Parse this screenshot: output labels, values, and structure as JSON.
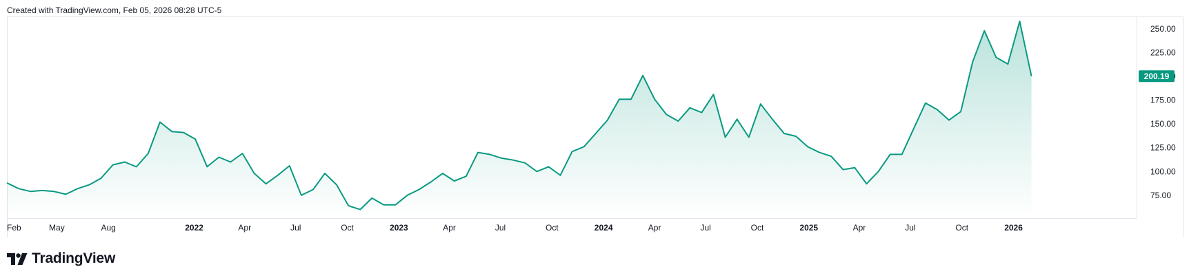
{
  "caption": "Created with TradingView.com, Feb 05, 2026 08:28 UTC-5",
  "brand": {
    "name": "TradingView",
    "logo_icon": "tradingview-logo-icon"
  },
  "colors": {
    "line": "#089981",
    "fill_top": "#089981",
    "label_bg": "#089981",
    "label_text": "#ffffff",
    "axis_text": "#131722",
    "border": "#e0e3eb"
  },
  "chart_data": {
    "type": "area",
    "title": "",
    "xlabel": "",
    "ylabel": "",
    "grid": false,
    "x_range": [
      "2021-02-01",
      "2026-02-05"
    ],
    "ylim": [
      51,
      263
    ],
    "y_ticks": [
      "75.00",
      "100.00",
      "125.00",
      "150.00",
      "175.00",
      "200.00",
      "225.00",
      "250.00"
    ],
    "x_ticks": [
      {
        "label": "Feb",
        "date": "2021-02-01",
        "bold": false
      },
      {
        "label": "May",
        "date": "2021-05-01",
        "bold": false
      },
      {
        "label": "Aug",
        "date": "2021-08-01",
        "bold": false
      },
      {
        "label": "2022",
        "date": "2022-01-01",
        "bold": true
      },
      {
        "label": "Apr",
        "date": "2022-04-01",
        "bold": false
      },
      {
        "label": "Jul",
        "date": "2022-07-01",
        "bold": false
      },
      {
        "label": "Oct",
        "date": "2022-10-01",
        "bold": false
      },
      {
        "label": "2023",
        "date": "2023-01-01",
        "bold": true
      },
      {
        "label": "Apr",
        "date": "2023-04-01",
        "bold": false
      },
      {
        "label": "Jul",
        "date": "2023-07-01",
        "bold": false
      },
      {
        "label": "Oct",
        "date": "2023-10-01",
        "bold": false
      },
      {
        "label": "2024",
        "date": "2024-01-01",
        "bold": true
      },
      {
        "label": "Apr",
        "date": "2024-04-01",
        "bold": false
      },
      {
        "label": "Jul",
        "date": "2024-07-01",
        "bold": false
      },
      {
        "label": "Oct",
        "date": "2024-10-01",
        "bold": false
      },
      {
        "label": "2025",
        "date": "2025-01-01",
        "bold": true
      },
      {
        "label": "Apr",
        "date": "2025-04-01",
        "bold": false
      },
      {
        "label": "Jul",
        "date": "2025-07-01",
        "bold": false
      },
      {
        "label": "Oct",
        "date": "2025-10-01",
        "bold": false
      },
      {
        "label": "2026",
        "date": "2026-01-01",
        "bold": true
      }
    ],
    "last_value_label": "200.19",
    "series": [
      {
        "x": [
          "2021-02-01",
          "2021-02-22",
          "2021-03-15",
          "2021-04-05",
          "2021-04-26",
          "2021-05-17",
          "2021-06-07",
          "2021-06-28",
          "2021-07-19",
          "2021-08-09",
          "2021-08-30",
          "2021-09-20",
          "2021-10-11",
          "2021-11-01",
          "2021-11-22",
          "2021-12-13",
          "2022-01-03",
          "2022-01-24",
          "2022-02-14",
          "2022-03-07",
          "2022-03-28",
          "2022-04-18",
          "2022-05-09",
          "2022-05-30",
          "2022-06-20",
          "2022-07-11",
          "2022-08-01",
          "2022-08-22",
          "2022-09-12",
          "2022-10-03",
          "2022-10-24",
          "2022-11-14",
          "2022-12-05",
          "2022-12-26",
          "2023-01-16",
          "2023-02-06",
          "2023-02-27",
          "2023-03-20",
          "2023-04-10",
          "2023-05-01",
          "2023-05-22",
          "2023-06-12",
          "2023-07-03",
          "2023-07-24",
          "2023-08-14",
          "2023-09-04",
          "2023-09-25",
          "2023-10-16",
          "2023-11-06",
          "2023-11-27",
          "2023-12-18",
          "2024-01-08",
          "2024-01-29",
          "2024-02-19",
          "2024-03-11",
          "2024-04-01",
          "2024-04-22",
          "2024-05-13",
          "2024-06-03",
          "2024-06-24",
          "2024-07-15",
          "2024-08-05",
          "2024-08-26",
          "2024-09-16",
          "2024-10-07",
          "2024-10-28",
          "2024-11-18",
          "2024-12-09",
          "2024-12-30",
          "2025-01-20",
          "2025-02-10",
          "2025-03-03",
          "2025-03-24",
          "2025-04-14",
          "2025-05-05",
          "2025-05-26",
          "2025-06-16",
          "2025-07-07",
          "2025-07-28",
          "2025-08-18",
          "2025-09-08",
          "2025-09-29",
          "2025-10-20",
          "2025-11-10",
          "2025-12-01",
          "2025-12-22",
          "2026-01-12",
          "2026-02-02"
        ],
        "values": [
          88,
          82,
          79,
          80,
          79,
          76,
          82,
          86,
          93,
          107,
          110,
          105,
          119,
          152,
          142,
          141,
          134,
          105,
          115,
          110,
          119,
          98,
          87,
          96,
          106,
          75,
          81,
          98,
          86,
          64,
          60,
          72,
          65,
          65,
          75,
          81,
          89,
          98,
          90,
          95,
          120,
          118,
          114,
          112,
          109,
          100,
          105,
          96,
          121,
          126,
          140,
          154,
          176,
          176,
          201,
          176,
          160,
          153,
          167,
          162,
          181,
          136,
          155,
          136,
          171,
          155,
          140,
          137,
          126,
          120,
          116,
          102,
          104,
          87,
          100,
          118,
          118,
          145,
          172,
          165,
          154,
          163,
          215,
          248,
          220,
          213,
          258,
          200.19
        ]
      }
    ]
  }
}
